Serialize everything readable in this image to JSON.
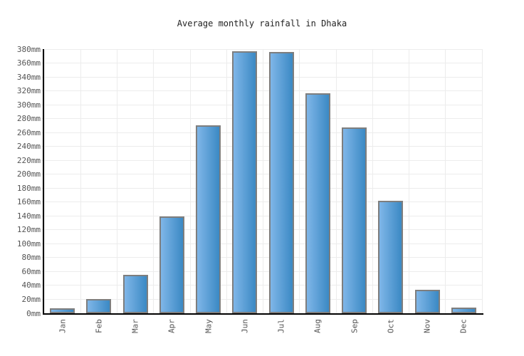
{
  "chart_data": {
    "type": "bar",
    "title": "Average monthly rainfall in Dhaka",
    "categories": [
      "Jan",
      "Feb",
      "Mar",
      "Apr",
      "May",
      "Jun",
      "Jul",
      "Aug",
      "Sep",
      "Oct",
      "Nov",
      "Dec"
    ],
    "values": [
      7,
      20,
      55,
      139,
      270,
      377,
      376,
      317,
      267,
      162,
      34,
      8
    ],
    "unit": "mm",
    "xlabel": "",
    "ylabel": "",
    "ylim": [
      0,
      380
    ],
    "ytick_step": 20,
    "ytick_suffix": "mm",
    "grid": true,
    "legend_position": "none",
    "colors": {
      "bar_gradient_left": "#7fb6e8",
      "bar_gradient_right": "#3b89c4",
      "bar_border": "#7e7e7e",
      "gridline": "#ececec",
      "axis": "#000000",
      "tick_label": "#555555",
      "title": "#222222",
      "background": "#ffffff"
    }
  }
}
